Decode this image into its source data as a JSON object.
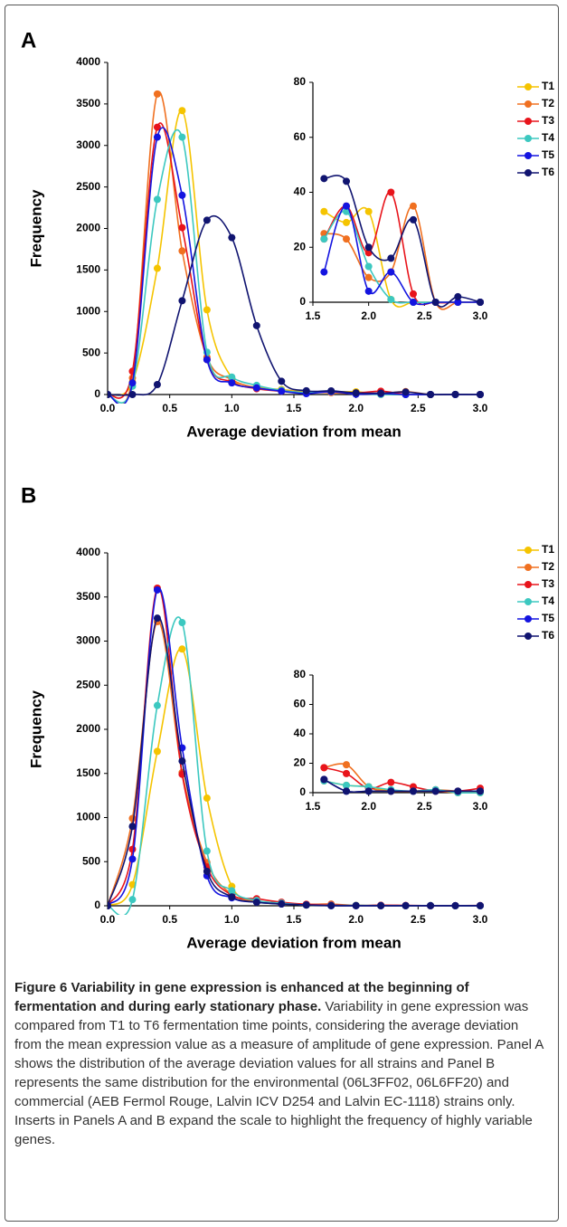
{
  "chart_data": [
    {
      "type": "line",
      "panel": "A",
      "xlabel": "Average deviation from mean",
      "ylabel": "Frequency",
      "x": [
        0,
        0.2,
        0.4,
        0.6,
        0.8,
        1.0,
        1.2,
        1.4,
        1.6,
        1.8,
        2.0,
        2.2,
        2.4,
        2.6,
        2.8,
        3.0
      ],
      "xlim": [
        0,
        3
      ],
      "ylim": [
        0,
        4000
      ],
      "xticks": [
        {
          "value": 0,
          "label": "0.0"
        },
        0.5,
        {
          "value": 1,
          "label": "1.0"
        },
        1.5,
        {
          "value": 2,
          "label": "2.0"
        },
        2.5,
        {
          "value": 3,
          "label": "3.0"
        }
      ],
      "yticks": [
        0,
        500,
        1000,
        1500,
        2000,
        2500,
        3000,
        3500,
        4000
      ],
      "legend": "right",
      "series": [
        {
          "name": "T1",
          "color": "#f5c400",
          "values": [
            0,
            150,
            1520,
            3420,
            1020,
            200,
            90,
            60,
            33,
            29,
            33,
            1,
            0,
            0,
            0,
            0
          ]
        },
        {
          "name": "T2",
          "color": "#f07020",
          "values": [
            0,
            200,
            3620,
            1730,
            450,
            180,
            80,
            50,
            25,
            23,
            9,
            11,
            35,
            0,
            0,
            0
          ]
        },
        {
          "name": "T3",
          "color": "#e8141b",
          "values": [
            0,
            280,
            3220,
            2010,
            420,
            150,
            70,
            40,
            23,
            35,
            18,
            40,
            3,
            0,
            0,
            0
          ]
        },
        {
          "name": "T4",
          "color": "#3cc8c0",
          "values": [
            0,
            100,
            2350,
            3100,
            510,
            210,
            110,
            50,
            23,
            33,
            13,
            1,
            0,
            0,
            0,
            0
          ]
        },
        {
          "name": "T5",
          "color": "#1414e0",
          "values": [
            0,
            140,
            3100,
            2400,
            420,
            140,
            80,
            40,
            11,
            35,
            4,
            11,
            0,
            0,
            0,
            0
          ]
        },
        {
          "name": "T6",
          "color": "#101470",
          "values": [
            0,
            0,
            120,
            1130,
            2100,
            1890,
            830,
            160,
            45,
            44,
            20,
            16,
            30,
            0,
            2,
            0
          ]
        }
      ],
      "inset": {
        "type": "line",
        "x": [
          1.6,
          1.8,
          2.0,
          2.2,
          2.4,
          2.6,
          2.8,
          3.0
        ],
        "xlim": [
          1.5,
          3
        ],
        "ylim": [
          0,
          80
        ],
        "xticks": [
          1.5,
          {
            "value": 2,
            "label": "2.0"
          },
          2.5,
          {
            "value": 3,
            "label": "3.0"
          }
        ],
        "yticks": [
          0,
          20,
          40,
          60,
          80
        ],
        "series": [
          {
            "color": "#f5c400",
            "values": [
              33,
              29,
              33,
              1,
              0,
              0,
              0,
              0
            ]
          },
          {
            "color": "#f07020",
            "values": [
              25,
              23,
              9,
              11,
              35,
              0,
              0,
              0
            ]
          },
          {
            "color": "#e8141b",
            "values": [
              23,
              35,
              18,
              40,
              3,
              0,
              0,
              0
            ]
          },
          {
            "color": "#3cc8c0",
            "values": [
              23,
              33,
              13,
              1,
              0,
              0,
              0,
              0
            ]
          },
          {
            "color": "#1414e0",
            "values": [
              11,
              35,
              4,
              11,
              0,
              0,
              0,
              0
            ]
          },
          {
            "color": "#101470",
            "values": [
              45,
              44,
              20,
              16,
              30,
              0,
              2,
              0
            ]
          }
        ]
      }
    },
    {
      "type": "line",
      "panel": "B",
      "xlabel": "Average deviation from mean",
      "ylabel": "Frequency",
      "x": [
        0,
        0.2,
        0.4,
        0.6,
        0.8,
        1.0,
        1.2,
        1.4,
        1.6,
        1.8,
        2.0,
        2.2,
        2.4,
        2.6,
        2.8,
        3.0
      ],
      "xlim": [
        0,
        3
      ],
      "ylim": [
        0,
        4000
      ],
      "xticks": [
        {
          "value": 0,
          "label": "0.0"
        },
        0.5,
        {
          "value": 1,
          "label": "1.0"
        },
        1.5,
        {
          "value": 2,
          "label": "2.0"
        },
        2.5,
        {
          "value": 3,
          "label": "3.0"
        }
      ],
      "yticks": [
        0,
        500,
        1000,
        1500,
        2000,
        2500,
        3000,
        3500,
        4000
      ],
      "legend": "right",
      "series": [
        {
          "name": "T1",
          "color": "#f5c400",
          "values": [
            0,
            240,
            1750,
            2910,
            1220,
            220,
            60,
            30,
            8,
            5,
            4,
            1,
            1,
            1,
            0,
            0
          ]
        },
        {
          "name": "T2",
          "color": "#f07020",
          "values": [
            0,
            990,
            3220,
            1510,
            490,
            130,
            50,
            30,
            17,
            19,
            4,
            1,
            1,
            2,
            1,
            1
          ]
        },
        {
          "name": "T3",
          "color": "#e8141b",
          "values": [
            0,
            640,
            3600,
            1490,
            440,
            120,
            80,
            40,
            17,
            13,
            3,
            7,
            4,
            1,
            1,
            3
          ]
        },
        {
          "name": "T4",
          "color": "#3cc8c0",
          "values": [
            0,
            70,
            2270,
            3210,
            620,
            170,
            60,
            30,
            8,
            5,
            4,
            2,
            1,
            2,
            0,
            0
          ]
        },
        {
          "name": "T5",
          "color": "#1414e0",
          "values": [
            0,
            530,
            3580,
            1790,
            340,
            90,
            40,
            20,
            9,
            1,
            1,
            1,
            1,
            1,
            1,
            1
          ]
        },
        {
          "name": "T6",
          "color": "#101470",
          "values": [
            0,
            900,
            3260,
            1640,
            390,
            100,
            40,
            20,
            9,
            1,
            1,
            1,
            1,
            1,
            1,
            1
          ]
        }
      ],
      "inset": {
        "type": "line",
        "x": [
          1.6,
          1.8,
          2.0,
          2.2,
          2.4,
          2.6,
          2.8,
          3.0
        ],
        "xlim": [
          1.5,
          3
        ],
        "ylim": [
          0,
          80
        ],
        "xticks": [
          1.5,
          {
            "value": 2,
            "label": "2.0"
          },
          2.5,
          {
            "value": 3,
            "label": "3.0"
          }
        ],
        "yticks": [
          0,
          20,
          40,
          60,
          80
        ],
        "series": [
          {
            "color": "#f5c400",
            "values": [
              8,
              5,
              4,
              1,
              1,
              1,
              0,
              0
            ]
          },
          {
            "color": "#f07020",
            "values": [
              17,
              19,
              4,
              1,
              1,
              2,
              1,
              1
            ]
          },
          {
            "color": "#e8141b",
            "values": [
              17,
              13,
              3,
              7,
              4,
              1,
              1,
              3
            ]
          },
          {
            "color": "#3cc8c0",
            "values": [
              8,
              5,
              4,
              2,
              1,
              2,
              0,
              0
            ]
          },
          {
            "color": "#1414e0",
            "values": [
              9,
              1,
              1,
              1,
              1,
              1,
              1,
              1
            ]
          },
          {
            "color": "#101470",
            "values": [
              9,
              1,
              1,
              1,
              1,
              1,
              1,
              1
            ]
          }
        ]
      }
    }
  ],
  "caption": {
    "title": "Figure 6 Variability in gene expression is enhanced at the beginning of fermentation and during early stationary phase.",
    "text": "Variability in gene expression was compared from T1 to T6 fermentation time points, considering the average deviation from the mean expression value as a measure of amplitude of gene expression. Panel A shows the distribution of the average deviation values for all strains and Panel B represents the same distribution for the environmental (06L3FF02, 06L6FF20) and commercial (AEB Fermol Rouge, Lalvin ICV D254 and Lalvin EC-1118) strains only. Inserts in Panels A and B expand the scale to highlight the frequency of highly variable genes."
  }
}
